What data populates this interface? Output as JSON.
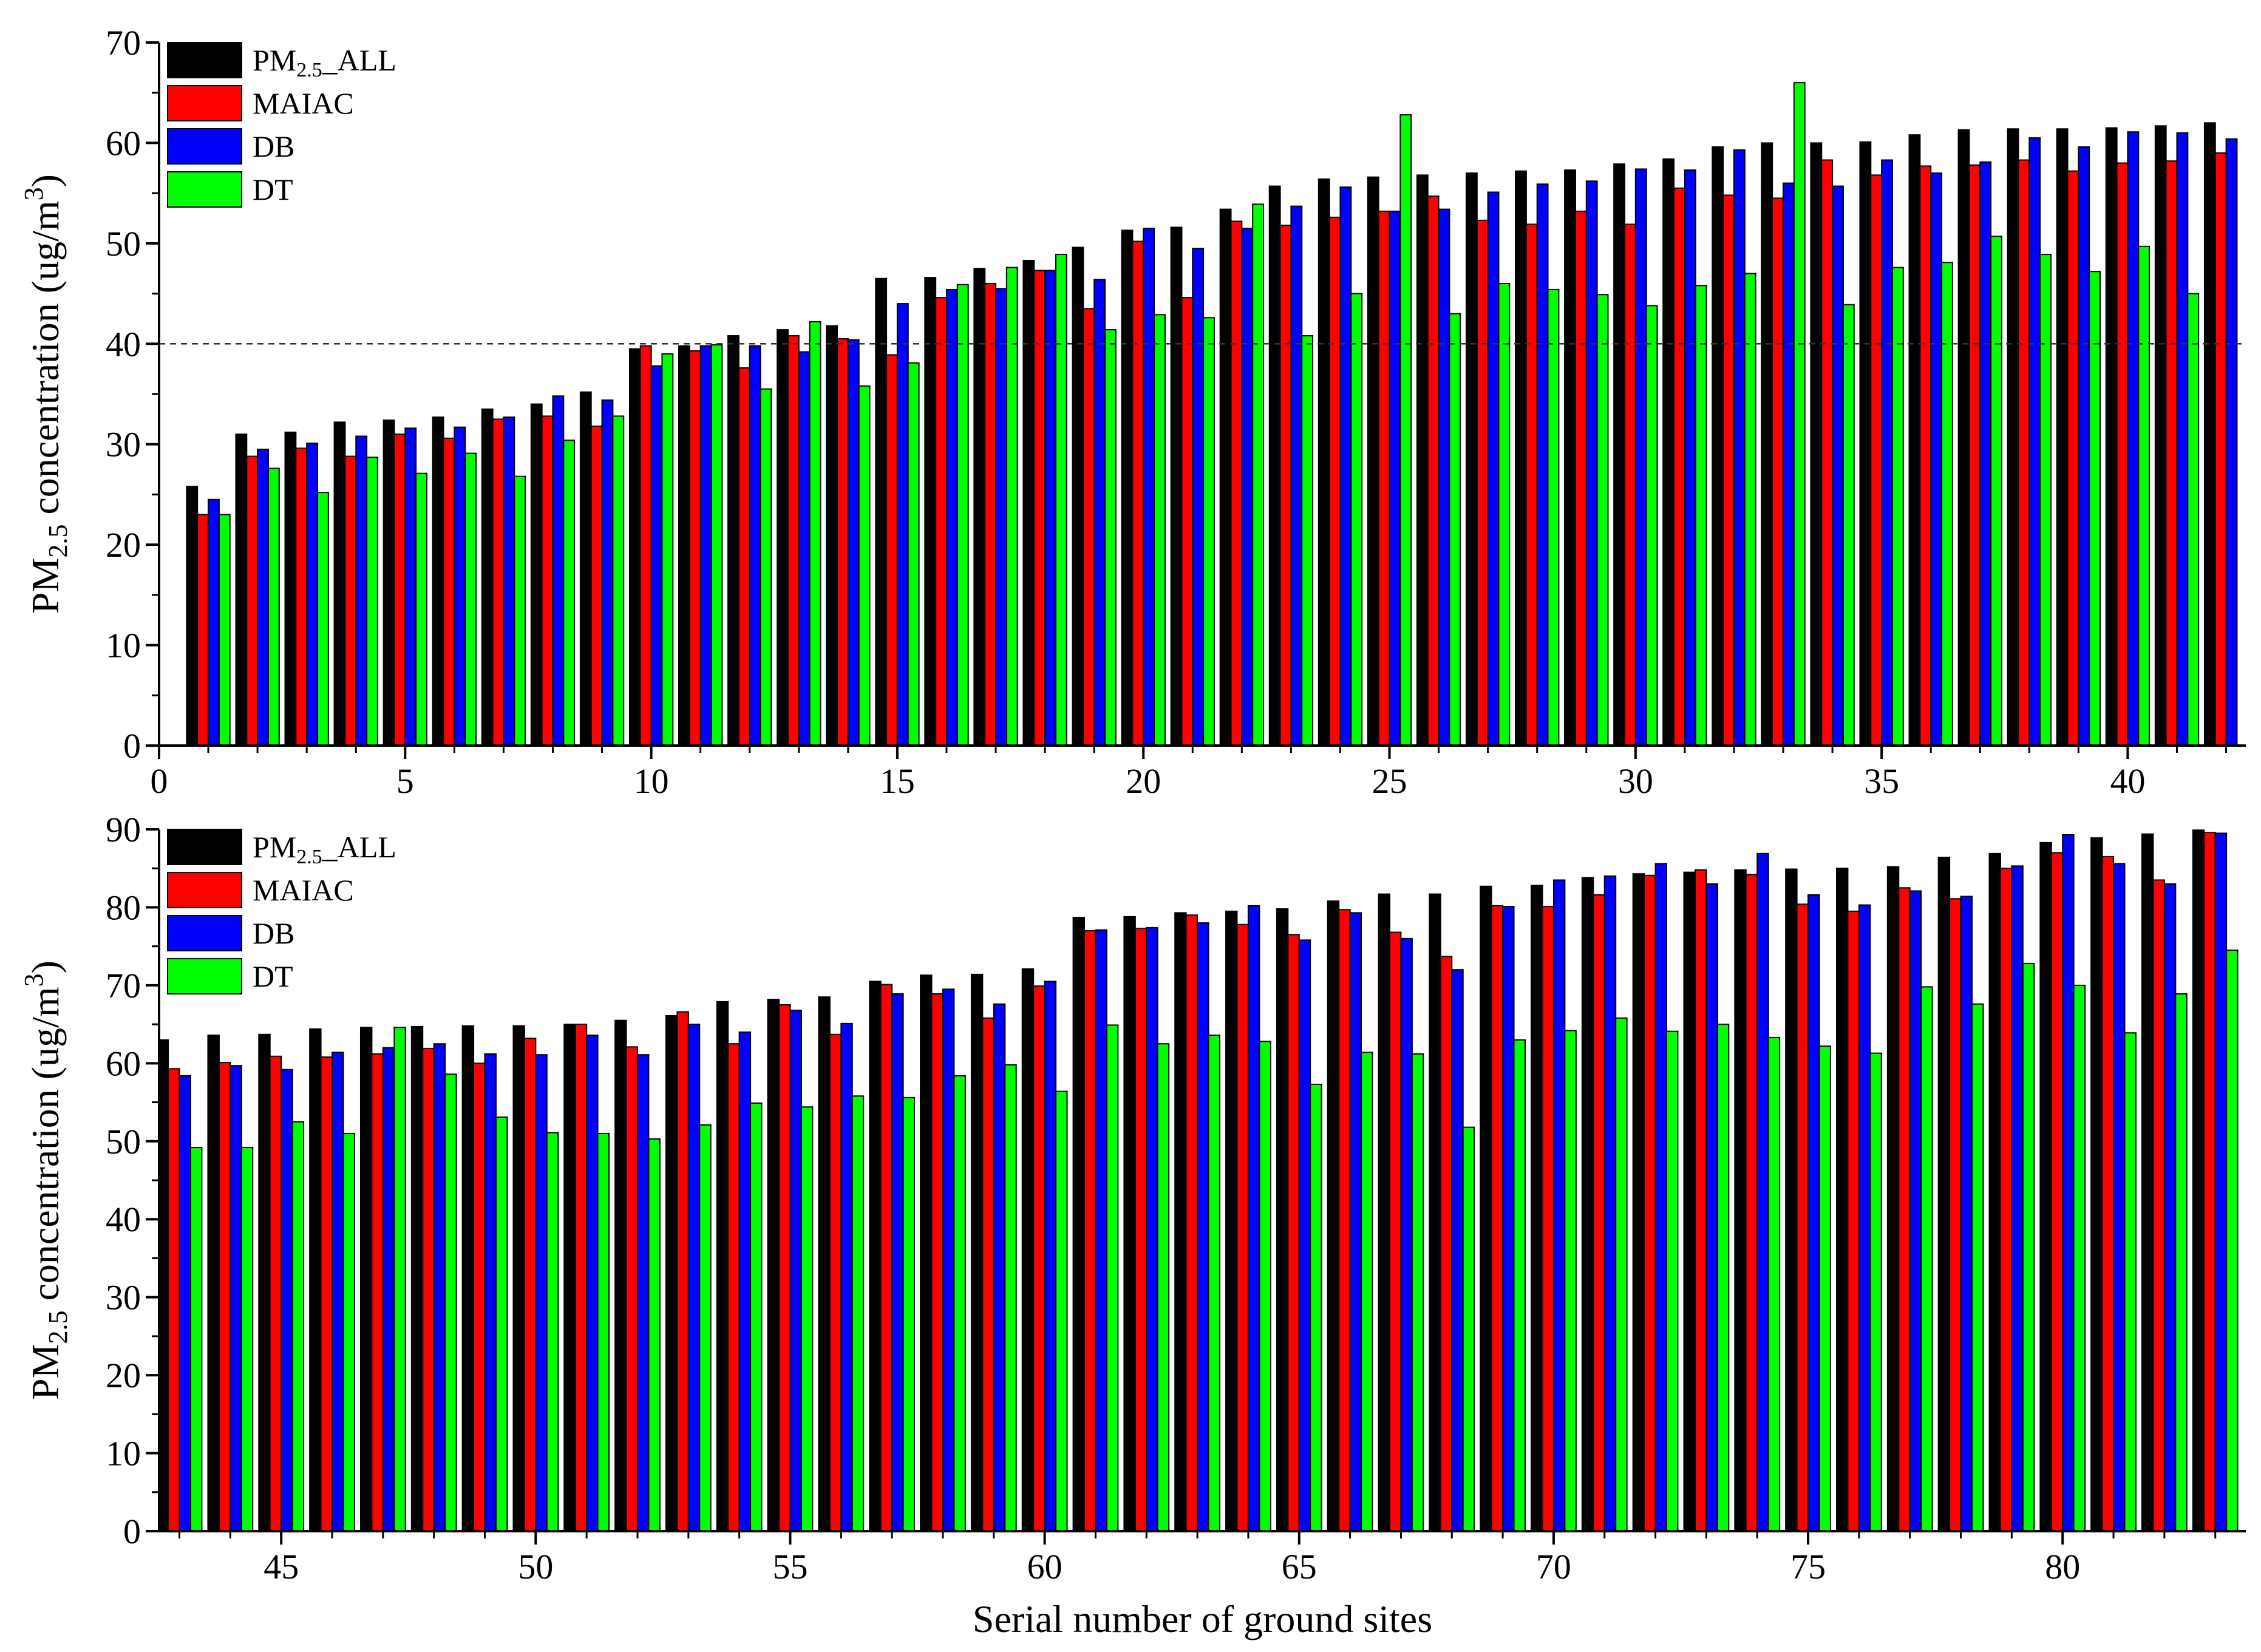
{
  "chart_data": [
    {
      "type": "bar",
      "ylabel_prefix": "PM",
      "ylabel_sub": "2.5",
      "ylabel_main": " concentration (ug/m",
      "ylabel_sup": "3",
      "ylabel_end": ")",
      "xlabel": "",
      "xlim": [
        0,
        42.4
      ],
      "ylim": [
        0,
        70
      ],
      "xticks": [
        0,
        5,
        10,
        15,
        20,
        25,
        30,
        35,
        40
      ],
      "yticks": [
        0,
        10,
        20,
        30,
        40,
        50,
        60,
        70
      ],
      "reference_line": 40,
      "legend_position": "top-left",
      "x": [
        1,
        2,
        3,
        4,
        5,
        6,
        7,
        8,
        9,
        10,
        11,
        12,
        13,
        14,
        15,
        16,
        17,
        18,
        19,
        20,
        21,
        22,
        23,
        24,
        25,
        26,
        27,
        28,
        29,
        30,
        31,
        32,
        33,
        34,
        35,
        36,
        37,
        38,
        39,
        40,
        41,
        42
      ],
      "series": [
        {
          "name": "PM2.5_ALL",
          "color": "#000000",
          "values": [
            25.8,
            31.0,
            31.2,
            32.2,
            32.4,
            32.7,
            33.5,
            34.0,
            35.2,
            39.5,
            39.8,
            40.8,
            41.4,
            41.8,
            46.5,
            46.6,
            47.5,
            48.3,
            49.6,
            51.3,
            51.6,
            53.4,
            55.7,
            56.4,
            56.6,
            56.8,
            57.0,
            57.2,
            57.3,
            57.9,
            58.4,
            59.6,
            60.0,
            60.0,
            60.1,
            60.8,
            61.3,
            61.4,
            61.4,
            61.5,
            61.7,
            62.0
          ]
        },
        {
          "name": "MAIAC",
          "color": "#ff0000",
          "values": [
            23.0,
            28.8,
            29.6,
            28.8,
            31.0,
            30.6,
            32.5,
            32.8,
            31.8,
            39.8,
            39.3,
            37.6,
            40.8,
            40.5,
            38.9,
            44.6,
            46.0,
            47.3,
            43.5,
            50.2,
            44.6,
            52.2,
            51.8,
            52.6,
            53.2,
            54.7,
            52.3,
            51.9,
            53.2,
            51.9,
            55.5,
            54.8,
            54.5,
            58.3,
            56.8,
            57.7,
            57.8,
            58.3,
            57.2,
            58.0,
            58.2,
            59.0
          ]
        },
        {
          "name": "DB",
          "color": "#0000ff",
          "values": [
            24.5,
            29.5,
            30.1,
            30.8,
            31.6,
            31.7,
            32.7,
            34.8,
            34.4,
            37.8,
            39.8,
            39.8,
            39.2,
            40.4,
            44.0,
            45.4,
            45.5,
            47.3,
            46.4,
            51.5,
            49.5,
            51.5,
            53.7,
            55.6,
            53.2,
            53.4,
            55.1,
            55.9,
            56.2,
            57.4,
            57.3,
            59.3,
            56.0,
            55.7,
            58.3,
            57.0,
            58.1,
            60.5,
            59.6,
            61.1,
            61.0,
            60.4
          ]
        },
        {
          "name": "DT",
          "color": "#00ff00",
          "values": [
            23.0,
            27.6,
            25.2,
            28.7,
            27.1,
            29.1,
            26.8,
            30.4,
            32.8,
            39.0,
            39.9,
            35.5,
            42.2,
            35.8,
            38.1,
            45.9,
            47.6,
            48.9,
            41.4,
            42.9,
            42.6,
            53.9,
            40.8,
            45.0,
            62.8,
            43.0,
            46.0,
            45.4,
            44.9,
            43.8,
            45.8,
            47.0,
            66.0,
            43.9,
            47.6,
            48.1,
            50.7,
            48.9,
            47.2,
            49.7,
            45.0,
            null
          ]
        }
      ]
    },
    {
      "type": "bar",
      "ylabel_prefix": "PM",
      "ylabel_sub": "2.5",
      "ylabel_main": " concentration (ug/m",
      "ylabel_sup": "3",
      "ylabel_end": ")",
      "xlabel": "Serial number of ground sites",
      "xlim": [
        42.6,
        83.6
      ],
      "ylim": [
        0,
        90
      ],
      "xticks": [
        45,
        50,
        55,
        60,
        65,
        70,
        75,
        80
      ],
      "yticks": [
        0,
        10,
        20,
        30,
        40,
        50,
        60,
        70,
        80,
        90
      ],
      "legend_position": "top-left",
      "x": [
        43,
        44,
        45,
        46,
        47,
        48,
        49,
        50,
        51,
        52,
        53,
        54,
        55,
        56,
        57,
        58,
        59,
        60,
        61,
        62,
        63,
        64,
        65,
        66,
        67,
        68,
        69,
        70,
        71,
        72,
        73,
        74,
        75,
        76,
        77,
        78,
        79,
        80,
        81,
        82,
        83
      ],
      "series": [
        {
          "name": "PM2.5_ALL",
          "color": "#000000",
          "values": [
            63.0,
            63.6,
            63.7,
            64.4,
            64.6,
            64.7,
            64.8,
            64.8,
            65.0,
            65.5,
            66.1,
            67.9,
            68.2,
            68.5,
            70.5,
            71.3,
            71.4,
            72.1,
            78.7,
            78.8,
            79.3,
            79.5,
            79.8,
            80.8,
            81.7,
            81.7,
            82.7,
            82.8,
            83.8,
            84.3,
            84.5,
            84.8,
            84.9,
            85.0,
            85.2,
            86.4,
            86.9,
            88.3,
            88.9,
            89.4,
            89.9
          ]
        },
        {
          "name": "MAIAC",
          "color": "#ff0000",
          "values": [
            59.3,
            60.1,
            60.9,
            60.8,
            61.2,
            61.9,
            60.0,
            63.2,
            65.0,
            62.1,
            66.6,
            62.5,
            67.5,
            63.7,
            70.1,
            68.9,
            65.8,
            69.9,
            77.0,
            77.3,
            79.0,
            77.8,
            76.5,
            79.7,
            76.8,
            73.7,
            80.2,
            80.1,
            81.6,
            84.1,
            84.8,
            84.2,
            80.4,
            79.5,
            82.5,
            81.1,
            85.0,
            87.0,
            86.5,
            83.5,
            89.6
          ]
        },
        {
          "name": "DB",
          "color": "#0000ff",
          "values": [
            58.4,
            59.7,
            59.2,
            61.4,
            62.0,
            62.5,
            61.2,
            61.1,
            63.6,
            61.1,
            65.0,
            64.0,
            66.8,
            65.1,
            68.9,
            69.5,
            67.6,
            70.5,
            77.1,
            77.4,
            78.0,
            80.2,
            75.8,
            79.3,
            76.0,
            72.0,
            80.1,
            83.5,
            84.0,
            85.6,
            83.0,
            86.9,
            81.6,
            80.3,
            82.1,
            81.4,
            85.3,
            89.3,
            85.6,
            83.0,
            89.5
          ]
        },
        {
          "name": "DT",
          "color": "#00ff00",
          "values": [
            49.2,
            49.2,
            52.5,
            51.0,
            64.6,
            58.6,
            53.1,
            51.1,
            51.0,
            50.3,
            52.1,
            54.9,
            54.4,
            55.8,
            55.6,
            58.4,
            59.8,
            56.4,
            64.9,
            62.5,
            63.6,
            62.8,
            57.3,
            61.4,
            61.2,
            51.8,
            63.0,
            64.2,
            65.8,
            64.1,
            65.0,
            63.3,
            62.2,
            61.3,
            69.8,
            67.6,
            72.8,
            70.0,
            63.9,
            68.9,
            74.5
          ]
        }
      ]
    }
  ],
  "legend": {
    "pm_prefix": "PM",
    "pm_sub": "2.5",
    "pm_suffix": "_ALL",
    "maiac": "MAIAC",
    "db": "DB",
    "dt": "DT"
  }
}
